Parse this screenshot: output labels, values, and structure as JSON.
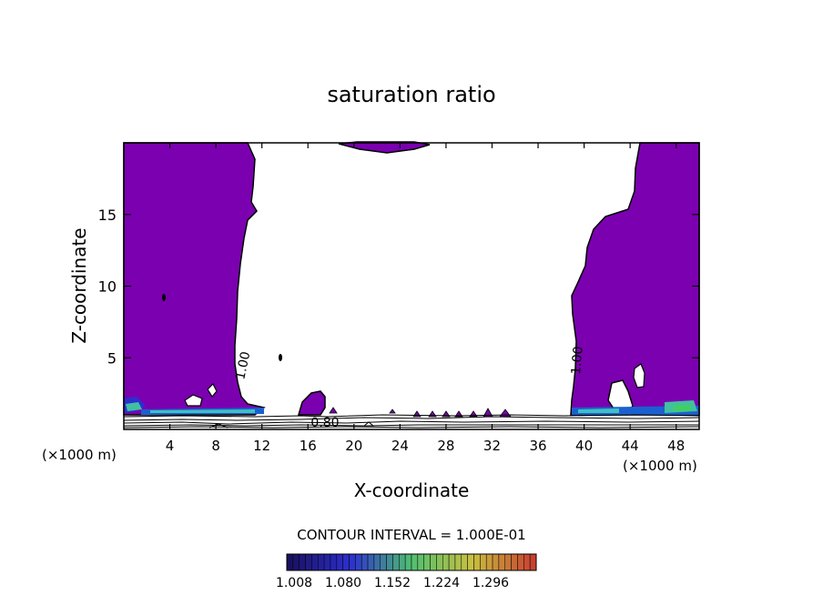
{
  "chart_data": {
    "type": "contour",
    "title": "saturation ratio",
    "xlabel": "X-coordinate",
    "ylabel": "Z-coordinate",
    "x_unit_left": "(×1000 m)",
    "x_unit_right": "(×1000 m)",
    "xlim": [
      0,
      50
    ],
    "ylim": [
      0,
      20
    ],
    "x_ticks": [
      4,
      8,
      12,
      16,
      20,
      24,
      28,
      32,
      36,
      40,
      44,
      48
    ],
    "x_tick_labels": [
      "4",
      "8",
      "12",
      "16",
      "20",
      "24",
      "28",
      "32",
      "36",
      "40",
      "44",
      "48"
    ],
    "y_ticks": [
      5,
      10,
      15
    ],
    "y_tick_labels": [
      "5",
      "10",
      "15"
    ],
    "contour_interval_text": "CONTOUR INTERVAL = 1.000E-01",
    "contour_labels": [
      "1.00",
      "1.00",
      "0.80"
    ],
    "colorbar": {
      "tick_labels": [
        "1.008",
        "1.080",
        "1.152",
        "1.224",
        "1.296"
      ],
      "colors": [
        "#1a1060",
        "#2c2fd0",
        "#4fc070",
        "#c8c040",
        "#c84030"
      ]
    },
    "fill_color": "#7b00b0",
    "regions": [
      {
        "name": "left-saturated-column",
        "x_range": [
          0,
          11
        ],
        "z_range": [
          1,
          19.8
        ]
      },
      {
        "name": "right-saturated-column",
        "x_range": [
          39.5,
          50
        ],
        "z_range": [
          1,
          19.8
        ]
      },
      {
        "name": "top-saturated-cap",
        "x_range": [
          19,
          25
        ],
        "z_range": [
          19.4,
          20
        ]
      },
      {
        "name": "small-saturated-patch",
        "x_range": [
          15.5,
          17.5
        ],
        "z_range": [
          1,
          2.8
        ]
      }
    ]
  }
}
